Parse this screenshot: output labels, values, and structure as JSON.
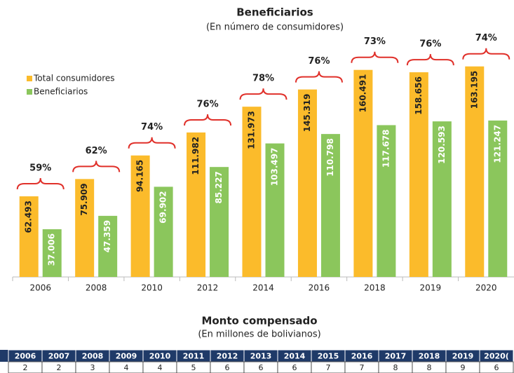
{
  "chart_data": {
    "type": "bar",
    "title": "Beneficiarios",
    "subtitle": "(En número de consumidores)",
    "categories": [
      "2006",
      "2008",
      "2010",
      "2012",
      "2014",
      "2016",
      "2018",
      "2019",
      "2020"
    ],
    "series": [
      {
        "name": "Total consumidores",
        "color": "#fbbb2b",
        "values": [
          62493,
          75909,
          94165,
          111982,
          131973,
          145319,
          160491,
          158656,
          163195
        ],
        "value_labels": [
          "62.493",
          "75.909",
          "94.165",
          "111.982",
          "131.973",
          "145.319",
          "160.491",
          "158.656",
          "163.195"
        ]
      },
      {
        "name": "Beneficiarios",
        "color": "#8bc65c",
        "values": [
          37006,
          47359,
          69902,
          85227,
          103497,
          110798,
          117678,
          120593,
          121247
        ],
        "value_labels": [
          "37.006",
          "47.359",
          "69.902",
          "85.227",
          "103.497",
          "110.798",
          "117.678",
          "120.593",
          "121.247"
        ]
      }
    ],
    "annotations": [
      "59%",
      "62%",
      "74%",
      "76%",
      "78%",
      "76%",
      "73%",
      "76%",
      "74%"
    ],
    "legend": "upper left"
  },
  "table": {
    "title": "Monto compensado",
    "subtitle": "(En millones de bolivianos)",
    "header": [
      "2006",
      "2007",
      "2008",
      "2009",
      "2010",
      "2011",
      "2012",
      "2013",
      "2014",
      "2015",
      "2016",
      "2017",
      "2018",
      "2019",
      "2020("
    ],
    "rows": [
      [
        "2",
        "2",
        "3",
        "4",
        "4",
        "5",
        "6",
        "6",
        "6",
        "7",
        "7",
        "8",
        "8",
        "9",
        "6"
      ]
    ]
  }
}
